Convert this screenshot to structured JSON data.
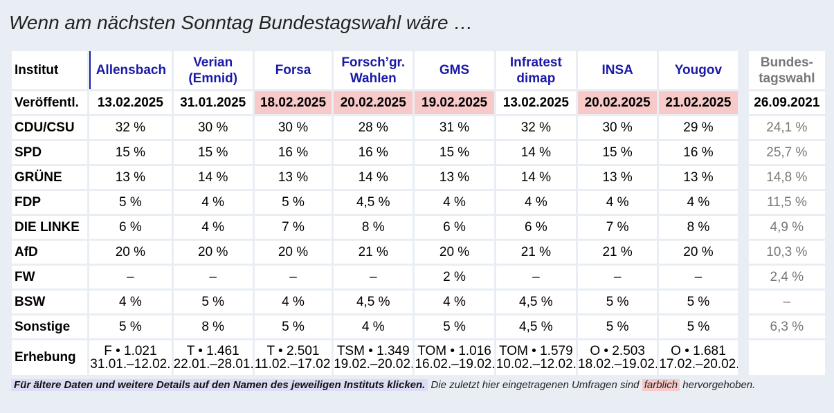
{
  "page": {
    "title": "Wenn am nächsten Sonntag Bundestagswahl wäre …"
  },
  "colors": {
    "institute_link": "#1a1aa8",
    "highlight": "#f7c9c9",
    "background": "#e9eef5",
    "election_text": "#777777"
  },
  "table": {
    "header_label": "Institut",
    "institutes": [
      {
        "line1": "Allensbach",
        "line2": ""
      },
      {
        "line1": "Verian",
        "line2": "(Emnid)"
      },
      {
        "line1": "Forsa",
        "line2": ""
      },
      {
        "line1": "Forsch’gr.",
        "line2": "Wahlen"
      },
      {
        "line1": "GMS",
        "line2": ""
      },
      {
        "line1": "Infratest",
        "line2": "dimap"
      },
      {
        "line1": "INSA",
        "line2": ""
      },
      {
        "line1": "Yougov",
        "line2": ""
      }
    ],
    "election_header": {
      "line1": "Bundes-",
      "line2": "tagswahl"
    },
    "date_label": "Veröffentl.",
    "dates": [
      "13.02.2025",
      "31.01.2025",
      "18.02.2025",
      "20.02.2025",
      "19.02.2025",
      "13.02.2025",
      "20.02.2025",
      "21.02.2025"
    ],
    "dates_highlighted": [
      false,
      false,
      true,
      true,
      true,
      false,
      true,
      true
    ],
    "election_date": "26.09.2021",
    "parties": [
      {
        "name": "CDU/CSU",
        "values": [
          "32 %",
          "30 %",
          "30 %",
          "28 %",
          "31 %",
          "32 %",
          "30 %",
          "29 %"
        ],
        "election": "24,1 %"
      },
      {
        "name": "SPD",
        "values": [
          "15 %",
          "15 %",
          "16 %",
          "16 %",
          "15 %",
          "14 %",
          "15 %",
          "16 %"
        ],
        "election": "25,7 %"
      },
      {
        "name": "GRÜNE",
        "values": [
          "13 %",
          "14 %",
          "13 %",
          "14 %",
          "13 %",
          "14 %",
          "13 %",
          "13 %"
        ],
        "election": "14,8 %"
      },
      {
        "name": "FDP",
        "values": [
          "5 %",
          "4 %",
          "5 %",
          "4,5 %",
          "4 %",
          "4 %",
          "4 %",
          "4 %"
        ],
        "election": "11,5 %"
      },
      {
        "name": "DIE LINKE",
        "values": [
          "6 %",
          "4 %",
          "7 %",
          "8 %",
          "6 %",
          "6 %",
          "7 %",
          "8 %"
        ],
        "election": "4,9 %"
      },
      {
        "name": "AfD",
        "values": [
          "20 %",
          "20 %",
          "20 %",
          "21 %",
          "20 %",
          "21 %",
          "21 %",
          "20 %"
        ],
        "election": "10,3 %"
      },
      {
        "name": "FW",
        "values": [
          "–",
          "–",
          "–",
          "–",
          "2 %",
          "–",
          "–",
          "–"
        ],
        "election": "2,4 %"
      },
      {
        "name": "BSW",
        "values": [
          "4 %",
          "5 %",
          "4 %",
          "4,5 %",
          "4 %",
          "4,5 %",
          "5 %",
          "5 %"
        ],
        "election": "–"
      },
      {
        "name": "Sonstige",
        "values": [
          "5 %",
          "8 %",
          "5 %",
          "4 %",
          "5 %",
          "4,5 %",
          "5 %",
          "5 %"
        ],
        "election": "6,3 %"
      }
    ],
    "survey_label": "Erhebung",
    "surveys": [
      {
        "line1": "F • 1.021",
        "line2": "31.01.–12.02."
      },
      {
        "line1": "T • 1.461",
        "line2": "22.01.–28.01."
      },
      {
        "line1": "T • 2.501",
        "line2": "11.02.–17.02."
      },
      {
        "line1": "TSM • 1.349",
        "line2": "19.02.–20.02."
      },
      {
        "line1": "TOM • 1.016",
        "line2": "16.02.–19.02."
      },
      {
        "line1": "TOM • 1.579",
        "line2": "10.02.–12.02."
      },
      {
        "line1": "O • 2.503",
        "line2": "18.02.–19.02."
      },
      {
        "line1": "O • 1.681",
        "line2": "17.02.–20.02."
      }
    ]
  },
  "footnote": {
    "link_text": "Für ältere Daten und weitere Details auf den Namen des jeweiligen Instituts klicken.",
    "text_before": " Die zuletzt hier eingetragenen Umfragen sind ",
    "highlight_word": "farblich",
    "text_after": " hervorgehoben."
  }
}
